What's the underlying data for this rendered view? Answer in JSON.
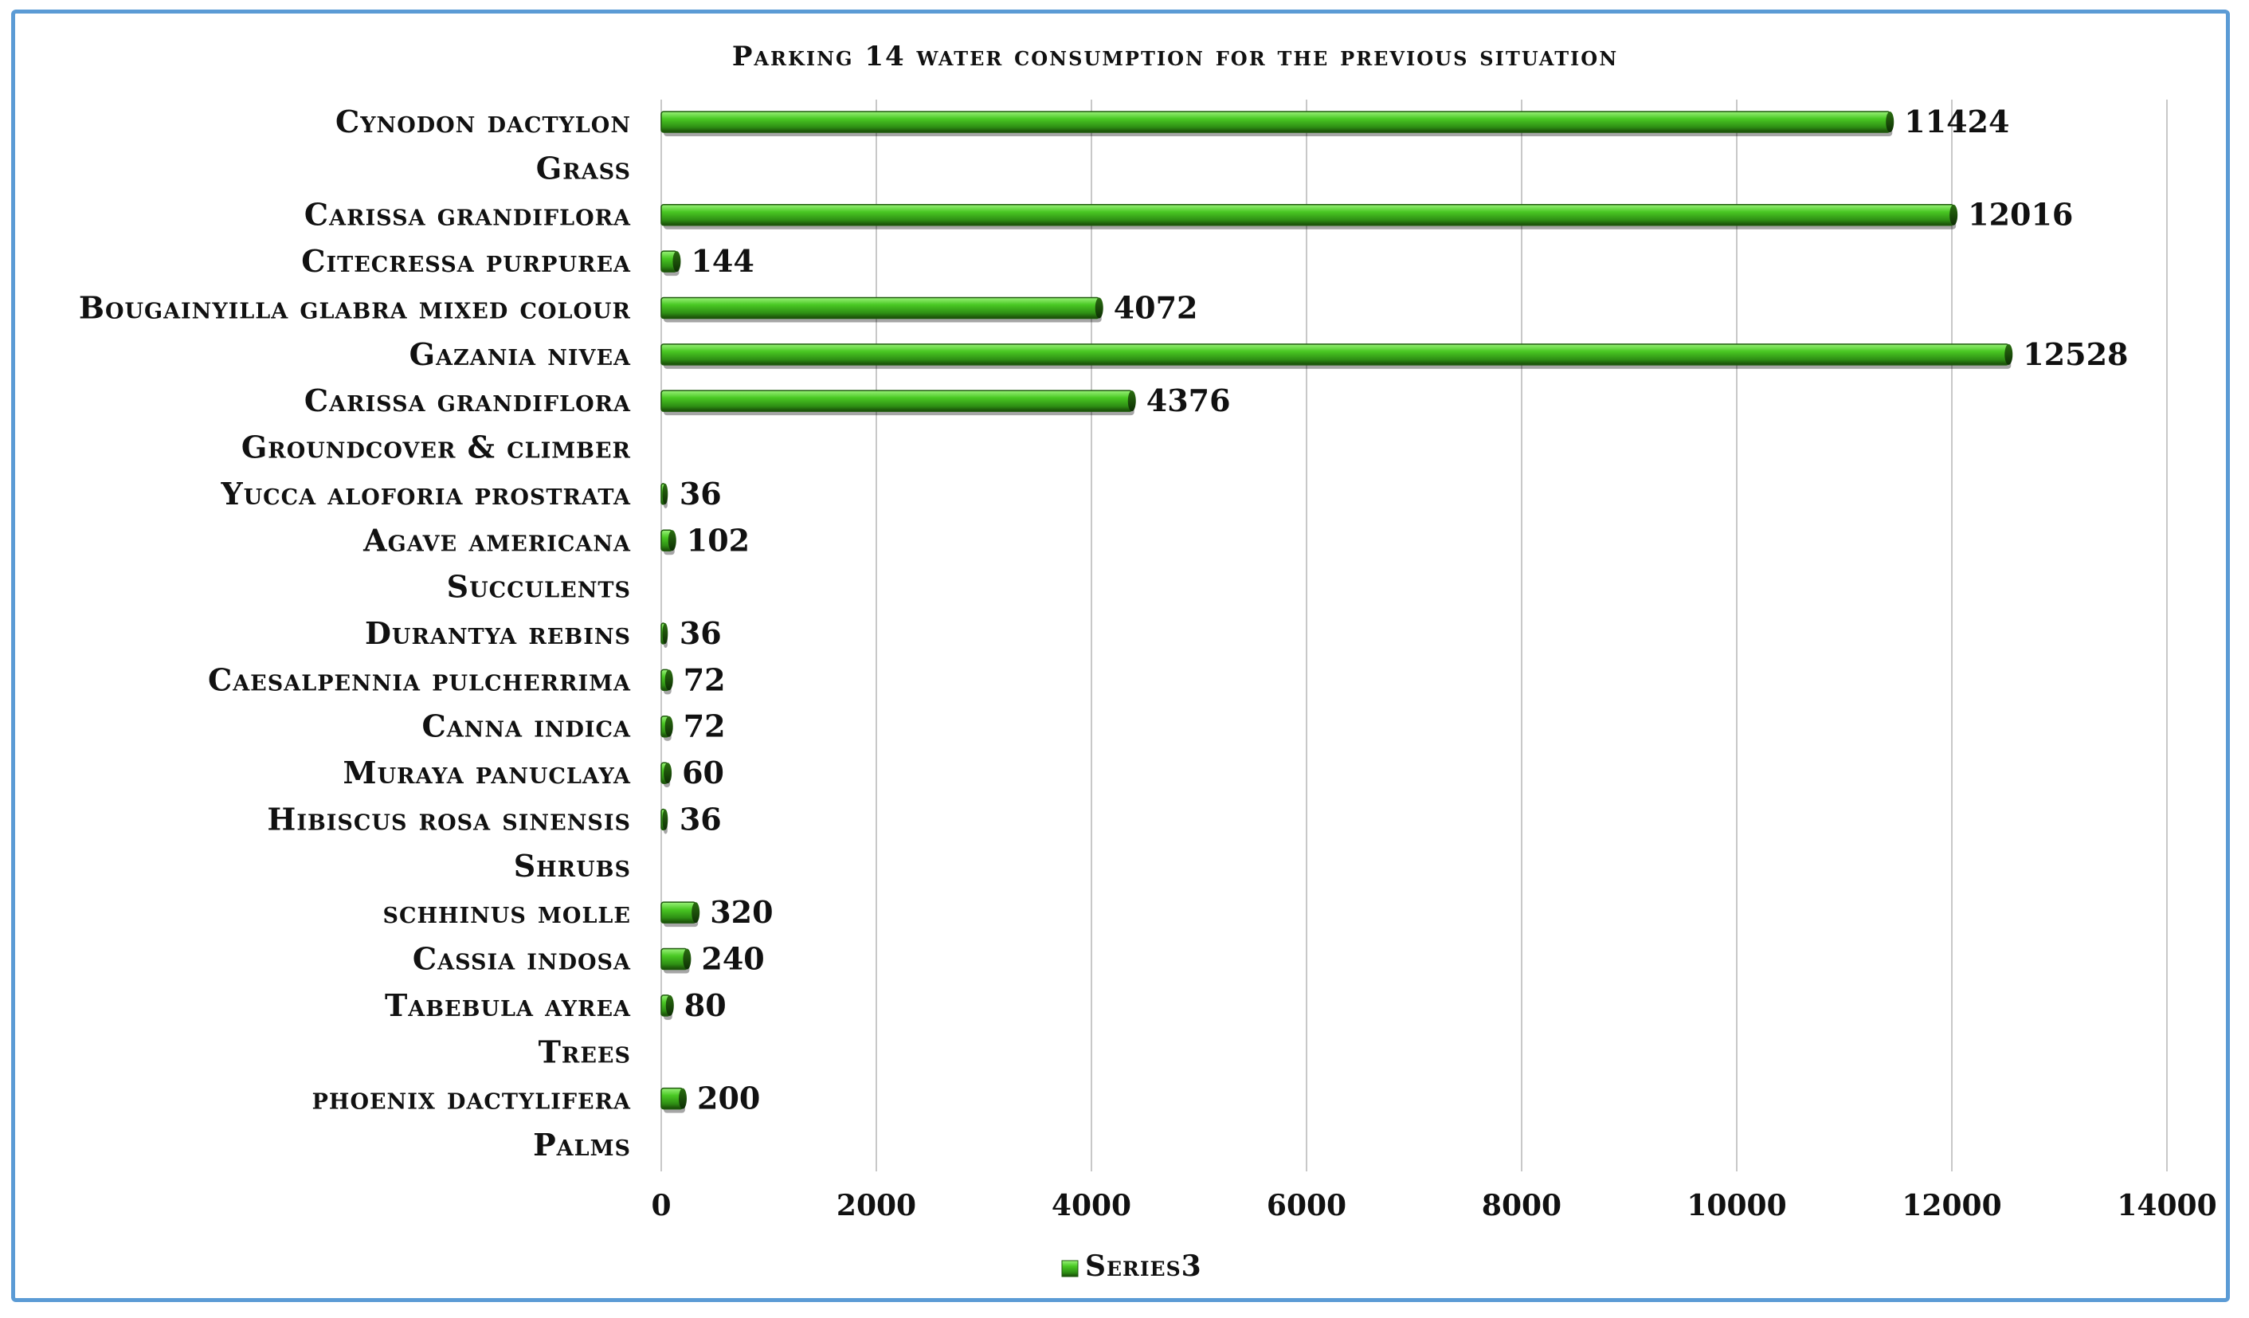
{
  "chart_data": {
    "type": "bar",
    "orientation": "horizontal",
    "title": "Parking 14 water consumption for the previous situation",
    "categories": [
      "Cynodon dactylon",
      "Grass",
      "Carissa grandiflora",
      "Citecressa purpurea",
      "Bougainyilla glabra mixed colour",
      "Gazania nivea",
      "Carissa grandiflora",
      "Groundcover & climber",
      "Yucca aloforia prostrata",
      "Agave americana",
      "Succulents",
      "Durantya rebins",
      "Caesalpennia pulcherrima",
      "Canna indica",
      "Muraya panuclaya",
      "Hibiscus rosa sinensis",
      "Shrubs",
      "schhinus molle",
      "Cassia indosa",
      "Tabebula ayrea",
      "Trees",
      "phoenix dactylifera",
      "Palms"
    ],
    "series": [
      {
        "name": "Series3",
        "values": [
          11424,
          null,
          12016,
          144,
          4072,
          12528,
          4376,
          null,
          36,
          102,
          null,
          36,
          72,
          72,
          60,
          36,
          null,
          320,
          240,
          80,
          null,
          200,
          null
        ],
        "labels": [
          "11424",
          "",
          "12016",
          "144",
          "4072",
          "12528",
          "4376",
          "",
          "36",
          "102",
          "",
          "36",
          "72",
          "72",
          "60",
          "36",
          "",
          "320",
          "240",
          "80",
          "",
          "200",
          ""
        ]
      }
    ],
    "xlim": [
      0,
      14000
    ],
    "xticks": [
      "0",
      "2000",
      "4000",
      "6000",
      "8000",
      "10000",
      "12000",
      "14000"
    ],
    "grid": true,
    "legend_position": "bottom",
    "colors": {
      "bar": "#3fbf1f",
      "bar_dark": "#1e5a0c",
      "bar_light": "#8fe870",
      "grid": "#c8c8c8",
      "frame": "#5b9bd5"
    }
  }
}
